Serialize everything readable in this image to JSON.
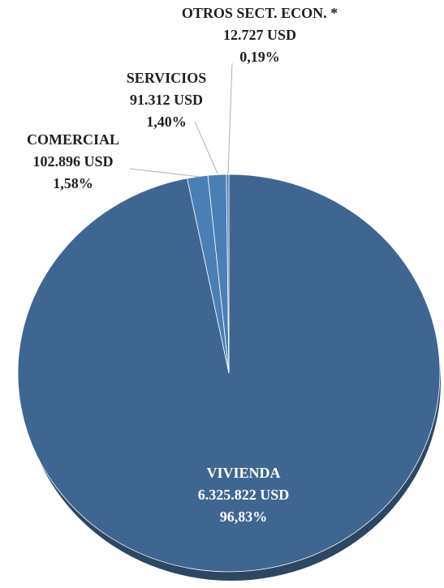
{
  "chart_data": {
    "type": "pie",
    "categories": [
      "VIVIENDA",
      "COMERCIAL",
      "SERVICIOS",
      "OTROS SECT. ECON. *"
    ],
    "values": [
      96.83,
      1.58,
      1.4,
      0.19
    ],
    "value_labels": [
      "96,83%",
      "1,58%",
      "1,40%",
      "0,19%"
    ],
    "amount_labels": [
      "6.325.822 USD",
      "102.896 USD",
      "91.312 USD",
      "12.727 USD"
    ],
    "colors": [
      "#3f6690",
      "#4a7fb6",
      "#4a7fb6",
      "#4a7fb6"
    ]
  }
}
